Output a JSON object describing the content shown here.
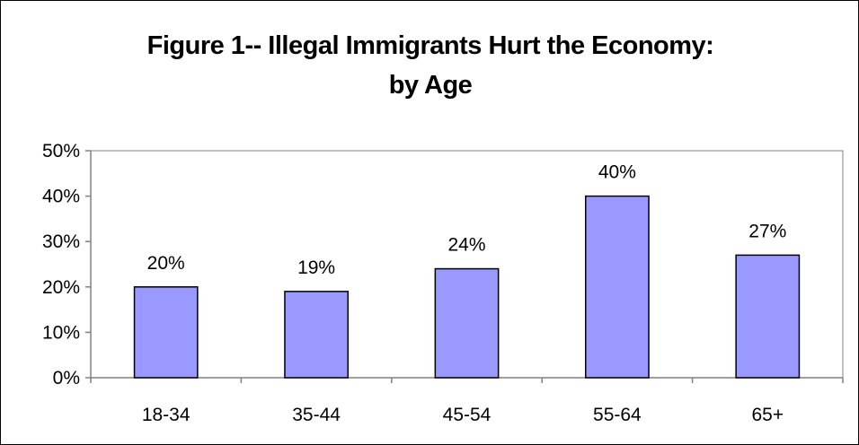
{
  "chart_data": {
    "type": "bar",
    "title_lines": [
      "Figure 1-- Illegal Immigrants Hurt the Economy:",
      "by Age"
    ],
    "categories": [
      "18-34",
      "35-44",
      "45-54",
      "55-64",
      "65+"
    ],
    "values": [
      20,
      19,
      24,
      40,
      27
    ],
    "data_labels": [
      "20%",
      "19%",
      "24%",
      "40%",
      "27%"
    ],
    "y_ticks": [
      0,
      10,
      20,
      30,
      40,
      50
    ],
    "y_tick_labels": [
      "0%",
      "10%",
      "20%",
      "30%",
      "40%",
      "50%"
    ],
    "ylim": [
      0,
      50
    ],
    "xlabel": "",
    "ylabel": "",
    "grid": false,
    "legend": "none",
    "colors": {
      "bar_fill": "#9999ff",
      "bar_stroke": "#000000",
      "axis": "#808080",
      "plot_border": "#808080"
    }
  }
}
